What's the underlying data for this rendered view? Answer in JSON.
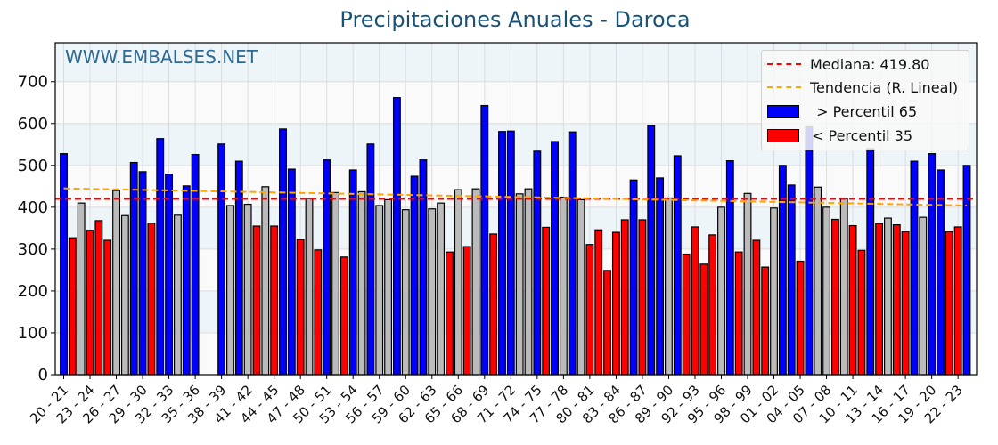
{
  "title": "Precipitaciones Anuales - Daroca",
  "watermark": "WWW.EMBALSES.NET",
  "legend": {
    "median": "Mediana: 419.80",
    "trend": "Tendencia (R. Lineal)",
    "above": " > Percentil 65",
    "below": "< Percentil 35"
  },
  "colors": {
    "title": "#1a5276",
    "watermark": "#2e6a94",
    "above": "#0000ff",
    "below": "#ff0000",
    "middle": "#bbbbbb",
    "median": "#ff0000",
    "trend": "#ffa500",
    "band": "#edf5f9"
  },
  "chart_data": {
    "type": "bar",
    "title": "Precipitaciones Anuales - Daroca",
    "xlabel": "",
    "ylabel": "",
    "ylim": [
      0,
      793
    ],
    "yticks": [
      0,
      100,
      200,
      300,
      400,
      500,
      600,
      700
    ],
    "grid": true,
    "legend_position": "upper right",
    "median": 419.8,
    "trend": {
      "start": 445,
      "end": 404
    },
    "categories": [
      "20 - 21",
      "21 - 22",
      "22 - 23",
      "23 - 24",
      "24 - 25",
      "25 - 26",
      "26 - 27",
      "27 - 28",
      "28 - 29",
      "29 - 30",
      "30 - 31",
      "31 - 32",
      "32 - 33",
      "33 - 34",
      "34 - 35",
      "35 - 36",
      "36 - 37",
      "37 - 38",
      "38 - 39",
      "39 - 40",
      "40 - 41",
      "41 - 42",
      "42 - 43",
      "43 - 44",
      "44 - 45",
      "45 - 46",
      "46 - 47",
      "47 - 48",
      "48 - 49",
      "49 - 50",
      "50 - 51",
      "51 - 52",
      "52 - 53",
      "53 - 54",
      "54 - 55",
      "55 - 56",
      "56 - 57",
      "57 - 58",
      "58 - 59",
      "59 - 60",
      "60 - 61",
      "61 - 62",
      "62 - 63",
      "63 - 64",
      "64 - 65",
      "65 - 66",
      "66 - 67",
      "67 - 68",
      "68 - 69",
      "69 - 70",
      "70 - 71",
      "71 - 72",
      "72 - 73",
      "73 - 74",
      "74 - 75",
      "75 - 76",
      "76 - 77",
      "77 - 78",
      "78 - 79",
      "79 - 80",
      "80 - 81",
      "81 - 82",
      "82 - 83",
      "83 - 84",
      "84 - 85",
      "85 - 86",
      "86 - 87",
      "87 - 88",
      "88 - 89",
      "89 - 90",
      "90 - 91",
      "91 - 92",
      "92 - 93",
      "93 - 94",
      "94 - 95",
      "95 - 96",
      "96 - 97",
      "97 - 98",
      "98 - 99",
      "99 - 00",
      "00 - 01",
      "01 - 02",
      "02 - 03",
      "03 - 04",
      "04 - 05",
      "05 - 06",
      "06 - 07",
      "07 - 08",
      "08 - 09",
      "09 - 10",
      "10 - 11",
      "11 - 12",
      "12 - 13",
      "13 - 14",
      "14 - 15",
      "15 - 16",
      "16 - 17",
      "17 - 18",
      "18 - 19",
      "19 - 20",
      "20 - 21",
      "21 - 22",
      "22 - 23",
      "23 - 24"
    ],
    "values": [
      528,
      327,
      410,
      345,
      368,
      321,
      440,
      380,
      507,
      485,
      362,
      564,
      479,
      381,
      451,
      526,
      null,
      null,
      551,
      404,
      510,
      407,
      355,
      449,
      355,
      587,
      491,
      323,
      421,
      298,
      513,
      435,
      281,
      489,
      437,
      551,
      404,
      418,
      662,
      394,
      474,
      513,
      396,
      410,
      293,
      442,
      306,
      444,
      643,
      336,
      581,
      582,
      432,
      444,
      534,
      352,
      557,
      424,
      580,
      418,
      311,
      346,
      249,
      340,
      370,
      465,
      370,
      595,
      470,
      422,
      523,
      288,
      353,
      264,
      334,
      400,
      511,
      293,
      433,
      321,
      257,
      398,
      500,
      453,
      271,
      592,
      448,
      400,
      371,
      421,
      356,
      297,
      540,
      361,
      374,
      358,
      342,
      510,
      376,
      528,
      489,
      342,
      353,
      500
    ],
    "classes": [
      "above",
      "below",
      "middle",
      "below",
      "below",
      "below",
      "middle",
      "middle",
      "above",
      "above",
      "below",
      "above",
      "above",
      "middle",
      "above",
      "above",
      null,
      null,
      "above",
      "middle",
      "above",
      "middle",
      "below",
      "middle",
      "below",
      "above",
      "above",
      "below",
      "middle",
      "below",
      "above",
      "middle",
      "below",
      "above",
      "middle",
      "above",
      "middle",
      "middle",
      "above",
      "middle",
      "above",
      "above",
      "middle",
      "middle",
      "below",
      "middle",
      "below",
      "middle",
      "above",
      "below",
      "above",
      "above",
      "middle",
      "middle",
      "above",
      "below",
      "above",
      "middle",
      "above",
      "middle",
      "below",
      "below",
      "below",
      "below",
      "below",
      "above",
      "below",
      "above",
      "above",
      "middle",
      "above",
      "below",
      "below",
      "below",
      "below",
      "middle",
      "above",
      "below",
      "middle",
      "below",
      "below",
      "middle",
      "above",
      "above",
      "below",
      "above",
      "middle",
      "middle",
      "below",
      "middle",
      "below",
      "below",
      "above",
      "below",
      "middle",
      "below",
      "below",
      "above",
      "middle",
      "above",
      "above",
      "below",
      "below",
      "above"
    ],
    "tick_labels": [
      "20 - 21",
      "23 - 24",
      "26 - 27",
      "29 - 30",
      "32 - 33",
      "35 - 36",
      "38 - 39",
      "41 - 42",
      "44 - 45",
      "47 - 48",
      "50 - 51",
      "53 - 54",
      "56 - 57",
      "59 - 60",
      "62 - 63",
      "65 - 66",
      "68 - 69",
      "71 - 72",
      "74 - 75",
      "77 - 78",
      "80 - 81",
      "83 - 84",
      "86 - 87",
      "89 - 90",
      "92 - 93",
      "95 - 96",
      "98 - 99",
      "01 - 02",
      "04 - 05",
      "07 - 08",
      "10 - 11",
      "13 - 14",
      "16 - 17",
      "19 - 20",
      "22 - 23"
    ]
  }
}
